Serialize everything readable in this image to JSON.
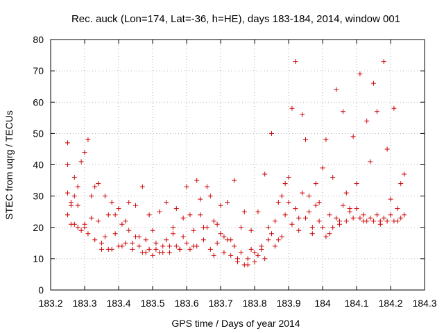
{
  "chart_data": {
    "type": "scatter",
    "title": "Rec. auck (Lon=174, Lat=-36, h=HE), days 183-184, 2014, window 001",
    "xlabel": "GPS time / Days of year 2014",
    "ylabel": "STEC from uqrg / TECUs",
    "xlim": [
      183.2,
      184.3
    ],
    "ylim": [
      0,
      80
    ],
    "xticks": [
      183.2,
      183.3,
      183.4,
      183.5,
      183.6,
      183.7,
      183.8,
      183.9,
      184.0,
      184.1,
      184.2,
      184.3
    ],
    "xtick_labels": [
      "183.2",
      "183.3",
      "183.4",
      "183.5",
      "183.6",
      "183.7",
      "183.8",
      "183.9",
      "184",
      "184.1",
      "184.2",
      "184.3"
    ],
    "yticks": [
      0,
      10,
      20,
      30,
      40,
      50,
      60,
      70,
      80
    ],
    "ytick_labels": [
      "0",
      "10",
      "20",
      "30",
      "40",
      "50",
      "60",
      "70",
      "80"
    ],
    "grid": true,
    "legend": "none",
    "marker": "plus",
    "color": "#cc0000",
    "series": [
      {
        "x": [
          183.25,
          183.25,
          183.25,
          183.26,
          183.26,
          183.27,
          183.27,
          183.28,
          183.28,
          183.29,
          183.3,
          183.3,
          183.31,
          183.32,
          183.33,
          183.34,
          183.35,
          183.36,
          183.37,
          183.38,
          183.39,
          183.4,
          183.41,
          183.42,
          183.43,
          183.44,
          183.45,
          183.46,
          183.47,
          183.48,
          183.49,
          183.5,
          183.51,
          183.52,
          183.53,
          183.54,
          183.55,
          183.56,
          183.57,
          183.58,
          183.59,
          183.6,
          183.61,
          183.62,
          183.63,
          183.64,
          183.65,
          183.66,
          183.67,
          183.68,
          183.69,
          183.7,
          183.71,
          183.72,
          183.73,
          183.74,
          183.75,
          183.76,
          183.77,
          183.78,
          183.79,
          183.8,
          183.81,
          183.82,
          183.83,
          183.84,
          183.85,
          183.86,
          183.87,
          183.88,
          183.89,
          183.9,
          183.91,
          183.92,
          183.93,
          183.94,
          183.95,
          183.96,
          183.97,
          183.98,
          183.99,
          184.0,
          184.01,
          184.02,
          184.03,
          184.04,
          184.05,
          184.06,
          184.07,
          184.08,
          184.09,
          184.1,
          184.11,
          184.12,
          184.13,
          184.14,
          184.15,
          184.16,
          184.17,
          184.18,
          184.19,
          184.2,
          184.21,
          184.22,
          184.23,
          184.24
        ],
        "y": [
          47,
          40,
          31,
          27,
          21,
          36,
          21,
          33,
          27,
          41,
          44,
          20,
          48,
          30,
          33,
          34,
          15,
          30,
          13,
          28,
          24,
          26,
          14,
          22,
          28,
          15,
          27,
          17,
          33,
          12,
          24,
          19,
          13,
          25,
          12,
          28,
          14,
          20,
          26,
          13,
          23,
          33,
          24,
          14,
          35,
          29,
          20,
          33,
          30,
          11,
          21,
          27,
          17,
          28,
          16,
          35,
          10,
          20,
          25,
          8,
          19,
          12,
          25,
          14,
          37,
          20,
          50,
          14,
          28,
          17,
          34,
          36,
          58,
          73,
          23,
          56,
          48,
          30,
          20,
          34,
          28,
          39,
          48,
          18,
          36,
          64,
          22,
          57,
          31,
          26,
          49,
          34,
          69,
          22,
          54,
          41,
          66,
          57,
          22,
          73,
          45,
          29,
          58,
          22,
          34,
          37
        ]
      },
      {
        "x": [
          183.25,
          183.26,
          183.27,
          183.28,
          183.29,
          183.3,
          183.31,
          183.32,
          183.33,
          183.34,
          183.35,
          183.36,
          183.37,
          183.38,
          183.39,
          183.4,
          183.41,
          183.42,
          183.43,
          183.44,
          183.45,
          183.46,
          183.47,
          183.48,
          183.49,
          183.5,
          183.51,
          183.52,
          183.53,
          183.54,
          183.55,
          183.56,
          183.57,
          183.58,
          183.59,
          183.6,
          183.61,
          183.62,
          183.63,
          183.64,
          183.65,
          183.66,
          183.67,
          183.68,
          183.69,
          183.7,
          183.71,
          183.72,
          183.73,
          183.74,
          183.75,
          183.76,
          183.77,
          183.78,
          183.79,
          183.8,
          183.81,
          183.82,
          183.83,
          183.84,
          183.85,
          183.86,
          183.87,
          183.88,
          183.89,
          183.9,
          183.91,
          183.92,
          183.93,
          183.94,
          183.95,
          183.96,
          183.97,
          183.98,
          183.99,
          184.0,
          184.01,
          184.02,
          184.03,
          184.04,
          184.05,
          184.06,
          184.07,
          184.08,
          184.09,
          184.1,
          184.11,
          184.12,
          184.13,
          184.14,
          184.15,
          184.16,
          184.17,
          184.18,
          184.19,
          184.2,
          184.21,
          184.22,
          184.23,
          184.24
        ],
        "y": [
          24,
          28,
          30,
          20,
          19,
          21,
          18,
          23,
          16,
          22,
          13,
          17,
          24,
          13,
          18,
          14,
          21,
          15,
          19,
          13,
          17,
          14,
          12,
          16,
          13,
          11,
          15,
          12,
          14,
          16,
          12,
          18,
          14,
          13,
          17,
          15,
          13,
          19,
          14,
          24,
          16,
          20,
          13,
          22,
          15,
          18,
          12,
          16,
          11,
          14,
          9,
          12,
          8,
          10,
          13,
          9,
          11,
          13,
          10,
          16,
          18,
          22,
          16,
          30,
          24,
          28,
          21,
          26,
          19,
          31,
          23,
          25,
          18,
          27,
          22,
          20,
          17,
          24,
          20,
          23,
          21,
          27,
          22,
          25,
          23,
          26,
          23,
          24,
          22,
          23,
          22,
          24,
          21,
          23,
          22,
          24,
          22,
          26,
          23,
          24
        ]
      }
    ]
  }
}
